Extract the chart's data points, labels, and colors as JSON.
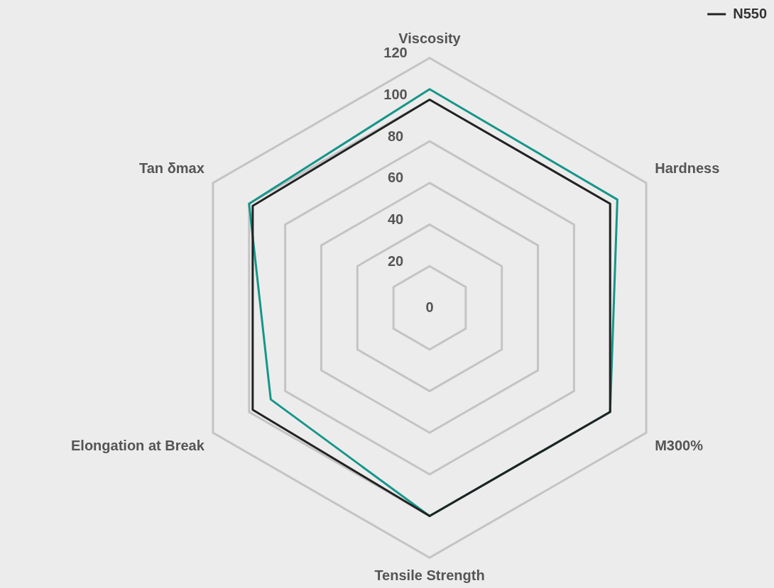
{
  "chart_data": {
    "type": "radar",
    "categories": [
      "Viscosity",
      "Hardness",
      "M300%",
      "Tensile Strength",
      "Elongation at Break",
      "Tan δmax"
    ],
    "series": [
      {
        "name": "N550",
        "color": "#222222",
        "values": [
          100,
          100,
          100,
          100,
          98,
          98
        ]
      },
      {
        "color": "#16968a",
        "values": [
          105,
          104,
          100,
          100,
          88,
          100
        ]
      }
    ],
    "ylim": [
      0,
      120
    ],
    "yticks": [
      0,
      20,
      40,
      60,
      80,
      100,
      120
    ],
    "grid": true,
    "legend": "top right",
    "marker": "none",
    "line_style": "solid"
  }
}
